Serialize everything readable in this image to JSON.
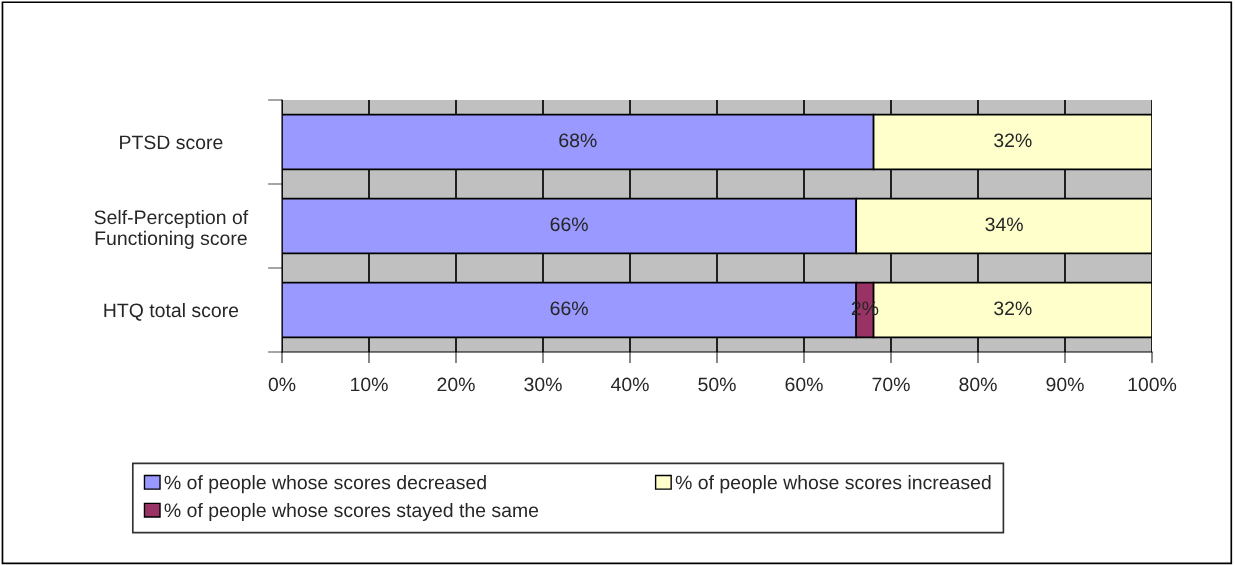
{
  "chart_data": {
    "type": "bar",
    "orientation": "horizontal",
    "stacked": true,
    "categories": [
      "PTSD score",
      "Self-Perception of\nFunctioning score",
      "HTQ total score"
    ],
    "series": [
      {
        "name": "% of people whose scores decreased",
        "color": "#9999ff",
        "values": [
          68,
          66,
          66
        ]
      },
      {
        "name": "% of people whose scores stayed the same",
        "color": "#993366",
        "values": [
          null,
          null,
          2
        ]
      },
      {
        "name": "% of people whose scores increased",
        "color": "#ffffcc",
        "values": [
          32,
          34,
          32
        ]
      }
    ],
    "value_labels": [
      [
        "68%",
        "66%",
        "66%"
      ],
      [
        null,
        null,
        "2%"
      ],
      [
        "32%",
        "34%",
        "32%"
      ]
    ],
    "xlim": [
      0,
      100
    ],
    "xticks": [
      {
        "value": 0,
        "label": "0%"
      },
      {
        "value": 10,
        "label": "10%"
      },
      {
        "value": 20,
        "label": "20%"
      },
      {
        "value": 30,
        "label": "30%"
      },
      {
        "value": 40,
        "label": "40%"
      },
      {
        "value": 50,
        "label": "50%"
      },
      {
        "value": 60,
        "label": "60%"
      },
      {
        "value": 70,
        "label": "70%"
      },
      {
        "value": 80,
        "label": "80%"
      },
      {
        "value": 90,
        "label": "90%"
      },
      {
        "value": 100,
        "label": "100%"
      }
    ],
    "grid": "x",
    "legend": "bottom"
  }
}
